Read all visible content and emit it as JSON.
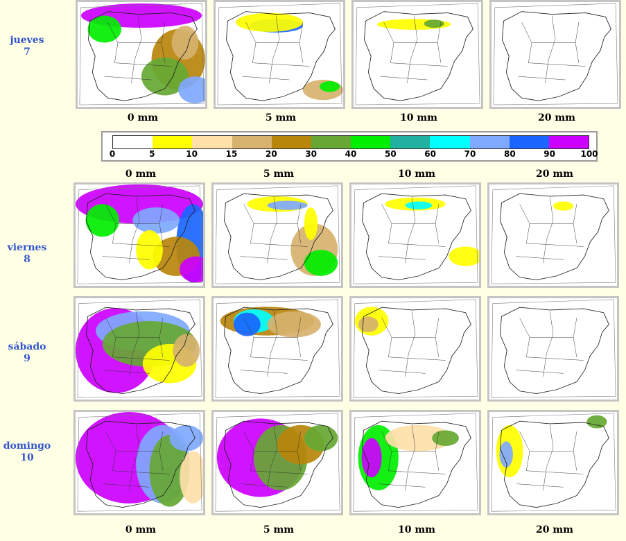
{
  "days": [
    {
      "name": "jueves",
      "num": "7"
    },
    {
      "name": "viernes",
      "num": "8"
    },
    {
      "name": "sábado",
      "num": "9"
    },
    {
      "name": "domingo",
      "num": "10"
    }
  ],
  "thresholds": [
    "0 mm",
    "5 mm",
    "10 mm",
    "20 mm"
  ],
  "legend": {
    "ticks": [
      "0",
      "5",
      "10",
      "15",
      "20",
      "30",
      "40",
      "50",
      "60",
      "70",
      "80",
      "90",
      "100"
    ],
    "colors": [
      "#ffffff",
      "#ffff00",
      "#fee0a8",
      "#d6b26e",
      "#b8860b",
      "#66a833",
      "#00ee00",
      "#22b0a0",
      "#00ffff",
      "#7fa8ff",
      "#1a66ff",
      "#cc00ff"
    ]
  }
}
